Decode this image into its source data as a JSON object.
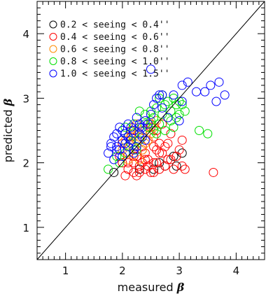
{
  "chart_data": {
    "type": "scatter",
    "xlabel": "measured",
    "ylabel": "predicted",
    "axis_symbol": "β",
    "xlim": [
      0.5,
      4.5
    ],
    "ylim": [
      0.5,
      4.5
    ],
    "xticks": [
      "1",
      "2",
      "3",
      "4"
    ],
    "yticks": [
      "1",
      "2",
      "3",
      "4"
    ],
    "grid": false,
    "legend_position": "top-left",
    "reference_line": {
      "label": "",
      "x": [
        0.5,
        4.5
      ],
      "y": [
        0.5,
        4.5
      ]
    },
    "series": [
      {
        "name": "0.2 < seeing < 0.4''",
        "color": "#000000",
        "x": [
          1.85,
          2.95,
          2.75,
          3.05,
          2.55,
          2.3,
          2.15,
          2.9,
          2.65,
          2.2
        ],
        "y": [
          1.85,
          1.95,
          1.95,
          2.15,
          1.9,
          1.9,
          2.3,
          2.1,
          2.0,
          2.2
        ]
      },
      {
        "name": "0.4 < seeing < 0.6''",
        "color": "#ff0000",
        "x": [
          2.05,
          2.1,
          2.2,
          2.25,
          2.3,
          2.35,
          2.4,
          2.45,
          2.5,
          2.55,
          2.6,
          2.65,
          2.7,
          2.75,
          2.8,
          2.85,
          2.9,
          2.95,
          3.0,
          3.05,
          3.1,
          3.6,
          1.95,
          2.0,
          2.15,
          2.25,
          2.35,
          2.45,
          2.5,
          2.55,
          2.6,
          2.65,
          2.7,
          2.8,
          2.15,
          2.3,
          2.4,
          2.5,
          2.55,
          2.6,
          2.85,
          3.05,
          2.0,
          2.1,
          2.2,
          2.35,
          2.45,
          2.55,
          2.65,
          2.75,
          2.3,
          2.4,
          2.2
        ],
        "y": [
          1.8,
          2.0,
          1.85,
          2.1,
          1.95,
          2.2,
          1.9,
          2.05,
          1.85,
          2.25,
          2.0,
          1.9,
          2.15,
          1.95,
          2.3,
          2.05,
          1.9,
          2.1,
          2.2,
          1.95,
          1.9,
          1.85,
          2.1,
          2.3,
          2.4,
          1.8,
          2.0,
          2.35,
          2.55,
          2.4,
          2.5,
          2.3,
          2.6,
          2.05,
          2.5,
          2.45,
          2.15,
          2.6,
          2.0,
          2.2,
          2.45,
          2.35,
          2.0,
          1.9,
          2.1,
          2.25,
          1.95,
          1.85,
          2.15,
          2.25,
          1.85,
          2.05,
          2.0
        ]
      },
      {
        "name": "0.6 < seeing < 0.8''",
        "color": "#ff8c00",
        "x": [
          2.0,
          2.1,
          2.15,
          2.2,
          2.25,
          2.3,
          2.35,
          2.4,
          2.45,
          2.5,
          2.2,
          2.3,
          2.4,
          2.15,
          2.05,
          2.55,
          2.6,
          2.25,
          2.35,
          2.45,
          2.1,
          2.2
        ],
        "y": [
          2.2,
          2.15,
          2.3,
          2.25,
          2.35,
          2.4,
          2.2,
          2.5,
          2.35,
          2.45,
          2.55,
          2.05,
          2.3,
          2.45,
          2.35,
          2.55,
          2.65,
          2.6,
          2.5,
          2.6,
          2.05,
          2.4
        ]
      },
      {
        "name": "0.8 < seeing < 1.0''",
        "color": "#00e000",
        "x": [
          1.75,
          1.9,
          2.0,
          2.05,
          2.1,
          2.2,
          2.3,
          2.4,
          2.5,
          2.55,
          2.6,
          2.7,
          2.75,
          2.8,
          2.85,
          2.9,
          2.95,
          3.0,
          3.05,
          3.1,
          3.35,
          3.5,
          2.65,
          2.7,
          2.85,
          2.95,
          2.6,
          2.75,
          2.5,
          2.45,
          2.35,
          2.25,
          2.15,
          2.05,
          1.95,
          2.65,
          2.8,
          3.0,
          2.9,
          2.55,
          2.4,
          2.2,
          2.3,
          2.1,
          2.0
        ],
        "y": [
          1.9,
          2.1,
          2.35,
          2.55,
          2.25,
          2.45,
          2.35,
          2.6,
          2.65,
          2.7,
          2.85,
          2.75,
          2.9,
          2.95,
          2.8,
          3.0,
          2.7,
          2.95,
          2.9,
          2.8,
          2.5,
          2.45,
          2.6,
          3.05,
          2.65,
          2.9,
          2.45,
          2.5,
          2.8,
          2.55,
          2.4,
          2.2,
          2.3,
          2.15,
          2.0,
          3.0,
          2.7,
          2.75,
          2.55,
          2.5,
          2.75,
          2.6,
          2.8,
          2.4,
          2.5
        ]
      },
      {
        "name": "1.0 < seeing < 1.5''",
        "color": "#0000ff",
        "x": [
          1.75,
          1.8,
          1.85,
          1.9,
          1.95,
          2.0,
          2.05,
          2.1,
          2.15,
          2.2,
          2.25,
          2.3,
          2.35,
          2.4,
          2.5,
          2.55,
          2.65,
          2.7,
          2.9,
          3.05,
          3.15,
          3.3,
          3.45,
          3.55,
          3.65,
          3.7,
          3.8,
          2.5,
          2.6,
          2.8,
          3.0,
          1.85,
          1.9,
          2.0,
          2.1,
          2.2,
          2.3,
          2.4,
          1.95,
          2.05,
          2.15,
          2.25,
          1.8,
          1.9,
          2.0,
          2.05,
          2.1,
          2.2,
          2.3,
          2.35,
          2.45,
          3.05,
          2.7
        ],
        "y": [
          2.15,
          2.3,
          2.4,
          2.25,
          2.55,
          2.35,
          2.45,
          2.6,
          2.35,
          2.5,
          2.7,
          2.45,
          2.55,
          2.65,
          2.75,
          2.9,
          3.05,
          3.05,
          3.05,
          3.2,
          3.25,
          3.1,
          3.1,
          3.2,
          2.95,
          3.25,
          3.05,
          3.45,
          3.0,
          2.7,
          2.65,
          2.05,
          2.2,
          2.1,
          2.25,
          2.15,
          2.6,
          2.35,
          2.2,
          2.3,
          2.55,
          2.25,
          2.25,
          2.45,
          2.5,
          2.3,
          2.4,
          2.2,
          2.55,
          2.4,
          2.6,
          2.95,
          2.85
        ]
      }
    ]
  }
}
